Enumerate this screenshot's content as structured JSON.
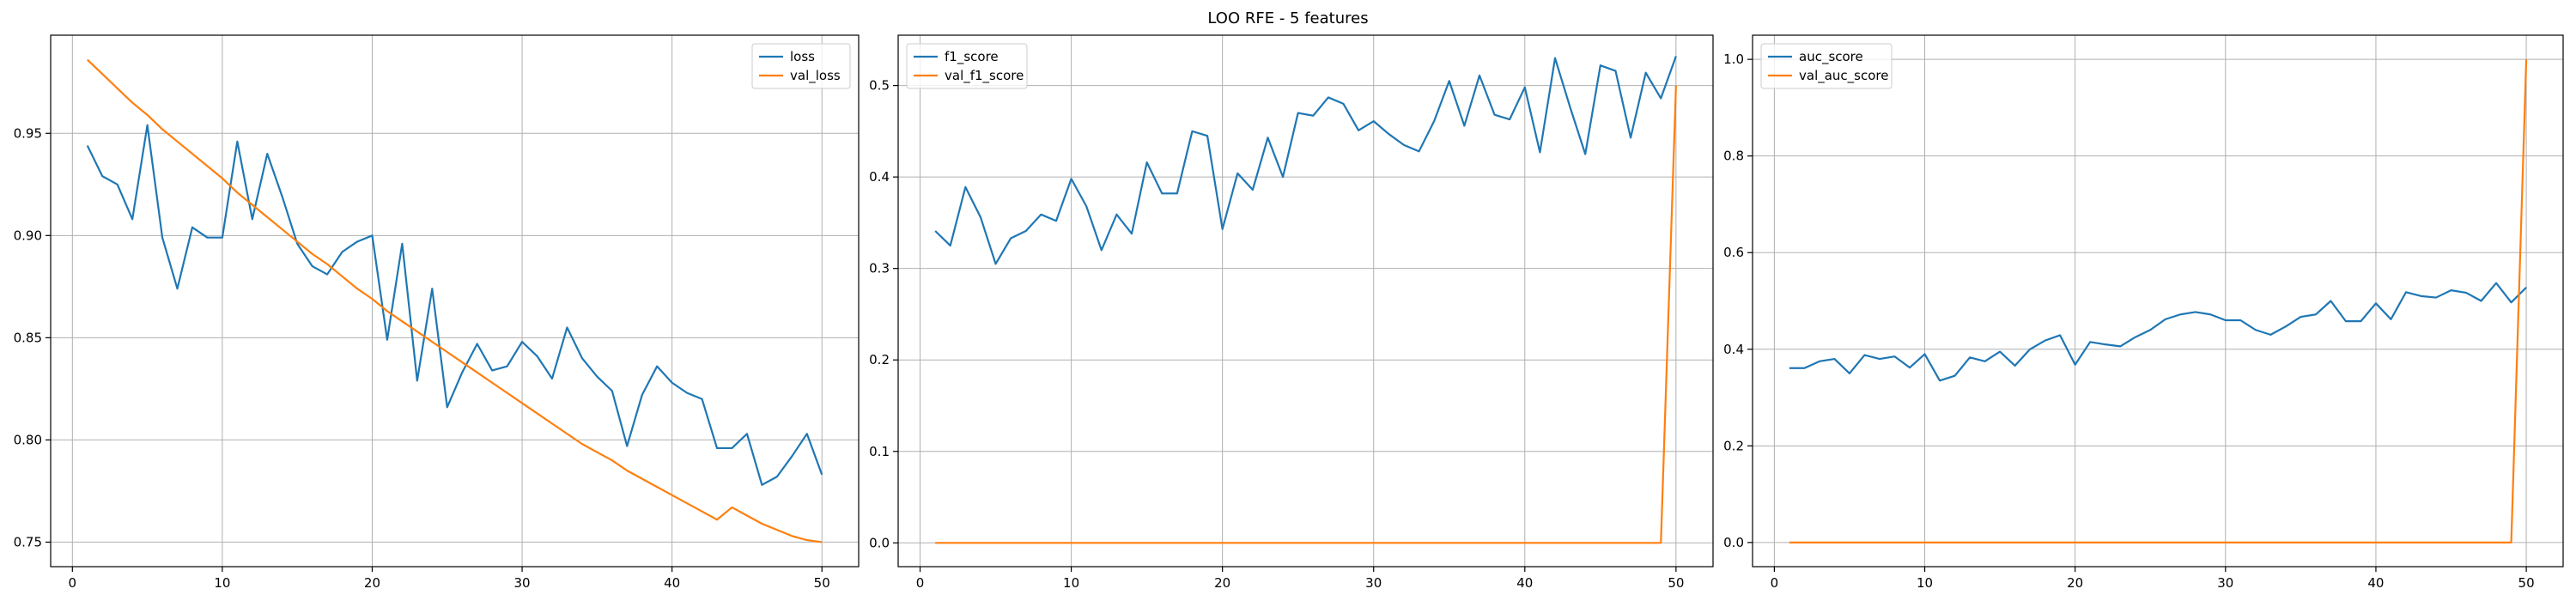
{
  "suptitle": "LOO RFE - 5 features",
  "colors": {
    "series1": "#1f77b4",
    "series2": "#ff7f0e"
  },
  "chart_data": [
    {
      "type": "line",
      "title": "",
      "xlabel": "",
      "ylabel": "",
      "grid": true,
      "legend_position": "top-right",
      "xlim": [
        -1.45,
        52.45
      ],
      "ylim": [
        0.738,
        0.998
      ],
      "xticks": [
        0,
        10,
        20,
        30,
        40,
        50
      ],
      "yticks": [
        0.75,
        0.8,
        0.85,
        0.9,
        0.95
      ],
      "ytick_labels": [
        "0.75",
        "0.80",
        "0.85",
        "0.90",
        "0.95"
      ],
      "x": [
        1,
        2,
        3,
        4,
        5,
        6,
        7,
        8,
        9,
        10,
        11,
        12,
        13,
        14,
        15,
        16,
        17,
        18,
        19,
        20,
        21,
        22,
        23,
        24,
        25,
        26,
        27,
        28,
        29,
        30,
        31,
        32,
        33,
        34,
        35,
        36,
        37,
        38,
        39,
        40,
        41,
        42,
        43,
        44,
        45,
        46,
        47,
        48,
        49,
        50
      ],
      "series": [
        {
          "name": "loss",
          "values": [
            0.944,
            0.929,
            0.925,
            0.908,
            0.954,
            0.899,
            0.874,
            0.904,
            0.899,
            0.899,
            0.946,
            0.908,
            0.94,
            0.919,
            0.896,
            0.885,
            0.881,
            0.892,
            0.897,
            0.9,
            0.849,
            0.896,
            0.829,
            0.874,
            0.816,
            0.833,
            0.847,
            0.834,
            0.836,
            0.848,
            0.841,
            0.83,
            0.855,
            0.84,
            0.831,
            0.824,
            0.797,
            0.822,
            0.836,
            0.828,
            0.823,
            0.82,
            0.796,
            0.796,
            0.803,
            0.778,
            0.782,
            0.792,
            0.803,
            0.783
          ]
        },
        {
          "name": "val_loss",
          "values": [
            0.986,
            0.979,
            0.972,
            0.965,
            0.959,
            0.952,
            0.946,
            0.94,
            0.934,
            0.928,
            0.921,
            0.915,
            0.909,
            0.903,
            0.897,
            0.891,
            0.886,
            0.88,
            0.874,
            0.869,
            0.863,
            0.858,
            0.853,
            0.848,
            0.843,
            0.838,
            0.833,
            0.828,
            0.823,
            0.818,
            0.813,
            0.808,
            0.803,
            0.798,
            0.794,
            0.79,
            0.785,
            0.781,
            0.777,
            0.773,
            0.769,
            0.765,
            0.761,
            0.767,
            0.763,
            0.759,
            0.756,
            0.753,
            0.751,
            0.75
          ]
        }
      ]
    },
    {
      "type": "line",
      "title": "",
      "xlabel": "",
      "ylabel": "",
      "grid": true,
      "legend_position": "top-left",
      "xlim": [
        -1.45,
        52.45
      ],
      "ylim": [
        -0.026,
        0.555
      ],
      "xticks": [
        0,
        10,
        20,
        30,
        40,
        50
      ],
      "yticks": [
        0.0,
        0.1,
        0.2,
        0.3,
        0.4,
        0.5
      ],
      "ytick_labels": [
        "0.0",
        "0.1",
        "0.2",
        "0.3",
        "0.4",
        "0.5"
      ],
      "x": [
        1,
        2,
        3,
        4,
        5,
        6,
        7,
        8,
        9,
        10,
        11,
        12,
        13,
        14,
        15,
        16,
        17,
        18,
        19,
        20,
        21,
        22,
        23,
        24,
        25,
        26,
        27,
        28,
        29,
        30,
        31,
        32,
        33,
        34,
        35,
        36,
        37,
        38,
        39,
        40,
        41,
        42,
        43,
        44,
        45,
        46,
        47,
        48,
        49,
        50
      ],
      "series": [
        {
          "name": "f1_score",
          "values": [
            0.341,
            0.325,
            0.389,
            0.356,
            0.305,
            0.333,
            0.341,
            0.359,
            0.352,
            0.398,
            0.368,
            0.32,
            0.359,
            0.338,
            0.416,
            0.382,
            0.382,
            0.45,
            0.445,
            0.343,
            0.404,
            0.386,
            0.443,
            0.4,
            0.47,
            0.467,
            0.487,
            0.48,
            0.451,
            0.461,
            0.447,
            0.435,
            0.428,
            0.461,
            0.505,
            0.456,
            0.511,
            0.468,
            0.463,
            0.498,
            0.427,
            0.53,
            0.476,
            0.425,
            0.522,
            0.516,
            0.443,
            0.514,
            0.486,
            0.532
          ]
        },
        {
          "name": "val_f1_score",
          "values": [
            0,
            0,
            0,
            0,
            0,
            0,
            0,
            0,
            0,
            0,
            0,
            0,
            0,
            0,
            0,
            0,
            0,
            0,
            0,
            0,
            0,
            0,
            0,
            0,
            0,
            0,
            0,
            0,
            0,
            0,
            0,
            0,
            0,
            0,
            0,
            0,
            0,
            0,
            0,
            0,
            0,
            0,
            0,
            0,
            0,
            0,
            0,
            0,
            0,
            0.5
          ]
        }
      ]
    },
    {
      "type": "line",
      "title": "",
      "xlabel": "",
      "ylabel": "",
      "grid": true,
      "legend_position": "top-left",
      "xlim": [
        -1.45,
        52.45
      ],
      "ylim": [
        -0.05,
        1.05
      ],
      "xticks": [
        0,
        10,
        20,
        30,
        40,
        50
      ],
      "yticks": [
        0.0,
        0.2,
        0.4,
        0.6,
        0.8,
        1.0
      ],
      "ytick_labels": [
        "0.0",
        "0.2",
        "0.4",
        "0.6",
        "0.8",
        "1.0"
      ],
      "x": [
        1,
        2,
        3,
        4,
        5,
        6,
        7,
        8,
        9,
        10,
        11,
        12,
        13,
        14,
        15,
        16,
        17,
        18,
        19,
        20,
        21,
        22,
        23,
        24,
        25,
        26,
        27,
        28,
        29,
        30,
        31,
        32,
        33,
        34,
        35,
        36,
        37,
        38,
        39,
        40,
        41,
        42,
        43,
        44,
        45,
        46,
        47,
        48,
        49,
        50
      ],
      "series": [
        {
          "name": "auc_score",
          "values": [
            0.361,
            0.361,
            0.375,
            0.38,
            0.35,
            0.388,
            0.38,
            0.385,
            0.362,
            0.39,
            0.335,
            0.345,
            0.383,
            0.375,
            0.395,
            0.366,
            0.4,
            0.418,
            0.429,
            0.368,
            0.415,
            0.41,
            0.406,
            0.425,
            0.44,
            0.462,
            0.472,
            0.477,
            0.472,
            0.46,
            0.46,
            0.44,
            0.43,
            0.447,
            0.467,
            0.472,
            0.5,
            0.458,
            0.458,
            0.495,
            0.462,
            0.518,
            0.51,
            0.507,
            0.522,
            0.517,
            0.5,
            0.537,
            0.497,
            0.528
          ]
        },
        {
          "name": "val_auc_score",
          "values": [
            0,
            0,
            0,
            0,
            0,
            0,
            0,
            0,
            0,
            0,
            0,
            0,
            0,
            0,
            0,
            0,
            0,
            0,
            0,
            0,
            0,
            0,
            0,
            0,
            0,
            0,
            0,
            0,
            0,
            0,
            0,
            0,
            0,
            0,
            0,
            0,
            0,
            0,
            0,
            0,
            0,
            0,
            0,
            0,
            0,
            0,
            0,
            0,
            0,
            1.0
          ]
        }
      ]
    }
  ]
}
